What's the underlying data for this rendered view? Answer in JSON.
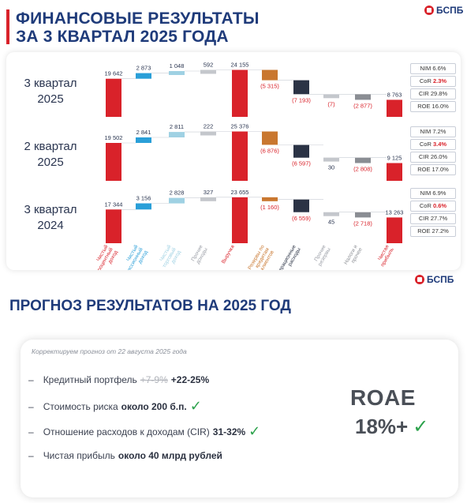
{
  "header": {
    "title_line1": "ФИНАНСОВЫЕ РЕЗУЛЬТАТЫ",
    "title_line2": "ЗА 3 КВАРТАЛ 2025 ГОДА",
    "logo_text": "БСПБ"
  },
  "chart_data": {
    "type": "waterfall",
    "categories": [
      "Чистый процентный доход",
      "Чистый комиссионный доход",
      "Чистый торговый доход",
      "Прочие доходы",
      "Выручка",
      "Резервы по кредитам клиентов",
      "Операционные расходы",
      "Прочие резервы",
      "Налоги и прочее",
      "Чистая прибыль"
    ],
    "category_colors": [
      "#d9222a",
      "#2a9fd8",
      "#9fd1e3",
      "#c4c7cc",
      "#d9222a",
      "#c9772f",
      "#2b3345",
      "#c4c7cc",
      "#8a8d93",
      "#d9222a"
    ],
    "series": [
      {
        "name": "3 квартал 2025",
        "line1": "3 квартал",
        "line2": "2025",
        "labels": [
          "19 642",
          "2 873",
          "1 048",
          "592",
          "24 155",
          "(5 315)",
          "(7 193)",
          "(7)",
          "(2 877)",
          "8 763"
        ],
        "values": [
          19642,
          2873,
          1048,
          592,
          24155,
          -5315,
          -7193,
          -7,
          -2877,
          8763
        ],
        "kpi": [
          {
            "label": "NIM",
            "value": "6.6%",
            "highlight": false
          },
          {
            "label": "CoR",
            "value": "2.3%",
            "highlight": true
          },
          {
            "label": "CIR",
            "value": "29.8%",
            "highlight": false
          },
          {
            "label": "ROE",
            "value": "16.0%",
            "highlight": false
          }
        ]
      },
      {
        "name": "2 квартал 2025",
        "line1": "2 квартал",
        "line2": "2025",
        "labels": [
          "19 502",
          "2 841",
          "2 811",
          "222",
          "25 376",
          "(6 876)",
          "(6 597)",
          "30",
          "(2 808)",
          "9 125"
        ],
        "values": [
          19502,
          2841,
          2811,
          222,
          25376,
          -6876,
          -6597,
          30,
          -2808,
          9125
        ],
        "kpi": [
          {
            "label": "NIM",
            "value": "7.2%",
            "highlight": false
          },
          {
            "label": "CoR",
            "value": "3.4%",
            "highlight": true
          },
          {
            "label": "CIR",
            "value": "26.0%",
            "highlight": false
          },
          {
            "label": "ROE",
            "value": "17.0%",
            "highlight": false
          }
        ]
      },
      {
        "name": "3 квартал 2024",
        "line1": "3 квартал",
        "line2": "2024",
        "labels": [
          "17 344",
          "3 156",
          "2 828",
          "327",
          "23 655",
          "(1 160)",
          "(6 559)",
          "45",
          "(2 718)",
          "13 263"
        ],
        "values": [
          17344,
          3156,
          2828,
          327,
          23655,
          -1160,
          -6559,
          45,
          -2718,
          13263
        ],
        "kpi": [
          {
            "label": "NIM",
            "value": "6.9%",
            "highlight": false
          },
          {
            "label": "CoR",
            "value": "0.6%",
            "highlight": true
          },
          {
            "label": "CIR",
            "value": "27.7%",
            "highlight": false
          },
          {
            "label": "ROE",
            "value": "27.2%",
            "highlight": false
          }
        ]
      }
    ]
  },
  "forecast": {
    "title": "ПРОГНОЗ РЕЗУЛЬТАТОВ НА 2025 ГОД",
    "logo_text": "БСПБ",
    "note": "Корректируем прогноз от 22 августа 2025 года",
    "items": [
      {
        "dash": "–",
        "text": "Кредитный портфель",
        "old": "+7-9%",
        "value": "+22-25%",
        "check": ""
      },
      {
        "dash": "–",
        "text": "Стоимость риска",
        "old": "",
        "value": "около 200 б.п.",
        "check": "✓"
      },
      {
        "dash": "–",
        "text": "Отношение расходов к доходам (CIR)",
        "old": "",
        "value": "31-32%",
        "check": "✓"
      },
      {
        "dash": "–",
        "text": "Чистая прибыль",
        "old": "",
        "value": "около 40 млрд рублей",
        "check": ""
      }
    ],
    "roae_label": "ROAE",
    "roae_value": "18%+",
    "roae_check": "✓"
  }
}
